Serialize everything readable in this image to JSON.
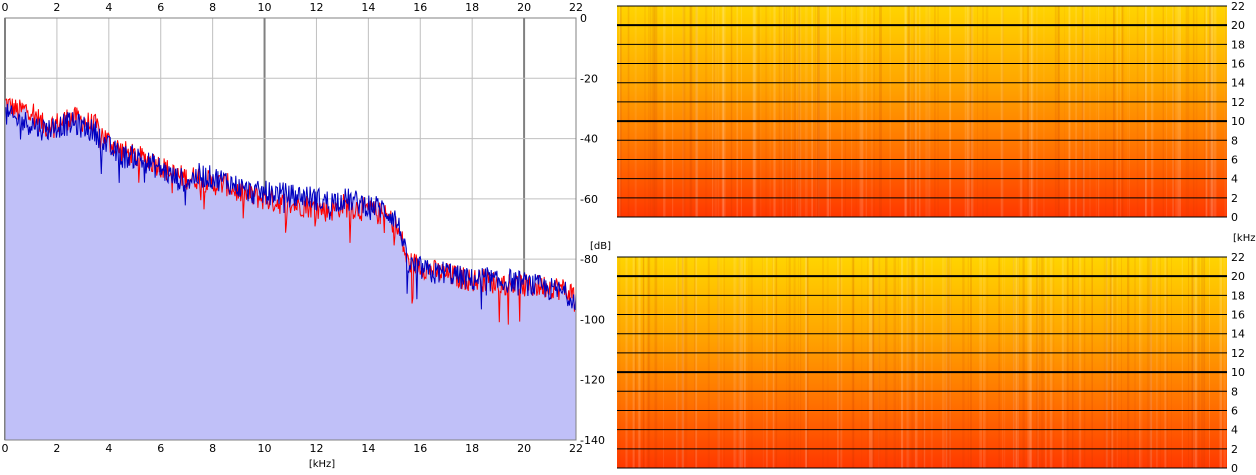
{
  "chart_data": [
    {
      "type": "line",
      "title": "",
      "xlabel": "[kHz]",
      "ylabel": "[dB]",
      "xlim": [
        0,
        22
      ],
      "ylim": [
        -140,
        0
      ],
      "x_ticks": [
        "0",
        "2",
        "4",
        "6",
        "8",
        "10",
        "12",
        "14",
        "16",
        "18",
        "20",
        "22"
      ],
      "y_ticks": [
        "0",
        "-20",
        "-40",
        "-60",
        "-80",
        "-100",
        "-120",
        "-140"
      ],
      "grid": true,
      "fill_color": "#c0c0f8",
      "x": [
        0,
        0.5,
        1,
        1.5,
        2,
        2.5,
        3,
        3.5,
        4,
        4.5,
        5,
        5.5,
        6,
        6.5,
        7,
        7.5,
        8,
        8.5,
        9,
        9.5,
        10,
        10.5,
        11,
        11.5,
        12,
        12.5,
        13,
        13.5,
        14,
        14.5,
        15,
        15.3,
        15.5,
        16,
        16.5,
        17,
        17.5,
        18,
        18.5,
        19,
        19.5,
        20,
        20.5,
        21,
        21.5,
        22
      ],
      "series": [
        {
          "color": "#ff0000",
          "values": [
            -28,
            -31,
            -30,
            -36,
            -35,
            -33,
            -34,
            -36,
            -41,
            -44,
            -46,
            -47,
            -49,
            -52,
            -53,
            -53,
            -55,
            -55,
            -58,
            -59,
            -60,
            -61,
            -62,
            -62,
            -63,
            -64,
            -62,
            -63,
            -64,
            -65,
            -68,
            -74,
            -81,
            -82,
            -84,
            -85,
            -86,
            -87,
            -87,
            -88,
            -88,
            -89,
            -89,
            -89,
            -90,
            -92
          ]
        },
        {
          "color": "#0000c0",
          "values": [
            -32,
            -34,
            -35,
            -37,
            -36,
            -35,
            -36,
            -38,
            -43,
            -46,
            -46,
            -48,
            -50,
            -53,
            -54,
            -52,
            -53,
            -54,
            -56,
            -58,
            -58,
            -58,
            -59,
            -59,
            -60,
            -61,
            -60,
            -61,
            -62,
            -63,
            -66,
            -72,
            -82,
            -83,
            -85,
            -84,
            -86,
            -87,
            -86,
            -88,
            -87,
            -88,
            -89,
            -90,
            -91,
            -93
          ]
        }
      ]
    },
    {
      "type": "heatmap",
      "title": "",
      "ylabel": "[kHz]",
      "ylim": [
        0,
        22
      ],
      "y_ticks": [
        "0",
        "2",
        "4",
        "6",
        "8",
        "10",
        "12",
        "14",
        "16",
        "18",
        "20",
        "22"
      ],
      "color_low": "#ff3000",
      "color_high": "#ffd800"
    },
    {
      "type": "heatmap",
      "title": "",
      "ylim": [
        0,
        22
      ],
      "y_ticks": [
        "0",
        "2",
        "4",
        "6",
        "8",
        "10",
        "12",
        "14",
        "16",
        "18",
        "20",
        "22"
      ],
      "color_low": "#ff3000",
      "color_high": "#ffd800"
    }
  ]
}
